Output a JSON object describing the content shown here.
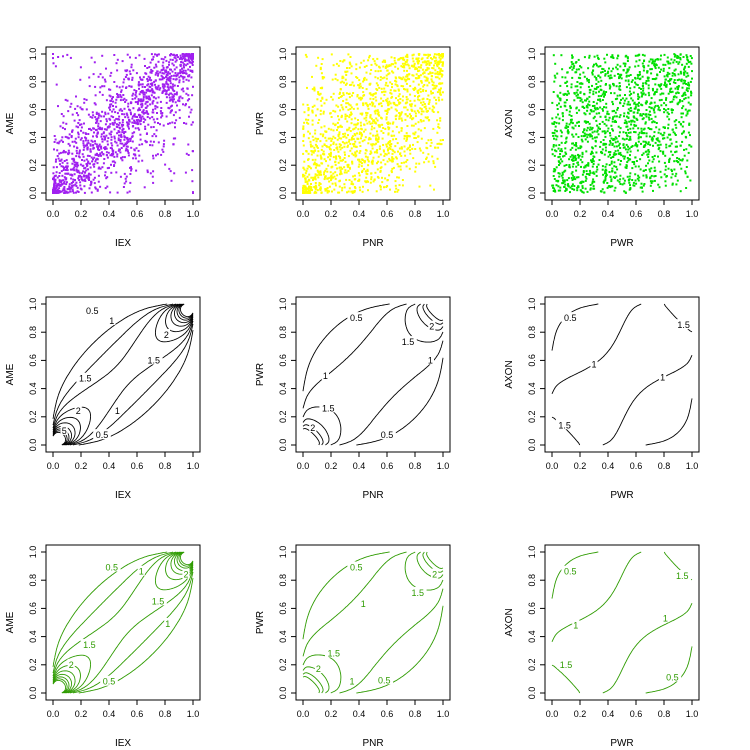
{
  "chart_data": [
    {
      "type": "scatter",
      "row": 0,
      "col": 0,
      "xlabel": "IEX",
      "ylabel": "AME",
      "xlim": [
        0,
        1
      ],
      "ylim": [
        0,
        1
      ],
      "xticks": [
        "0.0",
        "0.2",
        "0.4",
        "0.6",
        "0.8",
        "1.0"
      ],
      "yticks": [
        "0.0",
        "0.2",
        "0.4",
        "0.6",
        "0.8",
        "1.0"
      ],
      "color": "#A020F0",
      "n_points": 1500,
      "dependence": "strong positive, concentrated at (0,0) and (1,1)"
    },
    {
      "type": "scatter",
      "row": 0,
      "col": 1,
      "xlabel": "PNR",
      "ylabel": "PWR",
      "xlim": [
        0,
        1
      ],
      "ylim": [
        0,
        1
      ],
      "xticks": [
        "0.0",
        "0.2",
        "0.4",
        "0.6",
        "0.8",
        "1.0"
      ],
      "yticks": [
        "0.0",
        "0.2",
        "0.4",
        "0.6",
        "0.8",
        "1.0"
      ],
      "color": "#FFFF00",
      "n_points": 1500,
      "dependence": "moderate positive"
    },
    {
      "type": "scatter",
      "row": 0,
      "col": 2,
      "xlabel": "PWR",
      "ylabel": "AXON",
      "xlim": [
        0,
        1
      ],
      "ylim": [
        0,
        1
      ],
      "xticks": [
        "0.0",
        "0.2",
        "0.4",
        "0.6",
        "0.8",
        "1.0"
      ],
      "yticks": [
        "0.0",
        "0.2",
        "0.4",
        "0.6",
        "0.8",
        "1.0"
      ],
      "color": "#00E000",
      "n_points": 1500,
      "dependence": "weak positive"
    },
    {
      "type": "contour",
      "row": 1,
      "col": 0,
      "xlabel": "IEX",
      "ylabel": "AME",
      "xlim": [
        0,
        1
      ],
      "ylim": [
        0,
        1
      ],
      "xticks": [
        "0.0",
        "0.2",
        "0.4",
        "0.6",
        "0.8",
        "1.0"
      ],
      "yticks": [
        "0.0",
        "0.2",
        "0.4",
        "0.6",
        "0.8",
        "1.0"
      ],
      "color": "#000000",
      "contour_labels": [
        {
          "text": "0.5",
          "x": 0.28,
          "y": 0.95
        },
        {
          "text": "1",
          "x": 0.42,
          "y": 0.88
        },
        {
          "text": "2",
          "x": 0.81,
          "y": 0.78
        },
        {
          "text": "1.5",
          "x": 0.72,
          "y": 0.6
        },
        {
          "text": "1.5",
          "x": 0.23,
          "y": 0.47
        },
        {
          "text": "2",
          "x": 0.18,
          "y": 0.24
        },
        {
          "text": "1",
          "x": 0.46,
          "y": 0.24
        },
        {
          "text": "5",
          "x": 0.08,
          "y": 0.1
        },
        {
          "text": "0.5",
          "x": 0.35,
          "y": 0.07
        }
      ]
    },
    {
      "type": "contour",
      "row": 1,
      "col": 1,
      "xlabel": "PNR",
      "ylabel": "PWR",
      "xlim": [
        0,
        1
      ],
      "ylim": [
        0,
        1
      ],
      "xticks": [
        "0.0",
        "0.2",
        "0.4",
        "0.6",
        "0.8",
        "1.0"
      ],
      "yticks": [
        "0.0",
        "0.2",
        "0.4",
        "0.6",
        "0.8",
        "1.0"
      ],
      "color": "#000000",
      "contour_labels": [
        {
          "text": "0.5",
          "x": 0.38,
          "y": 0.9
        },
        {
          "text": "2",
          "x": 0.92,
          "y": 0.84
        },
        {
          "text": "1.5",
          "x": 0.75,
          "y": 0.73
        },
        {
          "text": "1",
          "x": 0.16,
          "y": 0.49
        },
        {
          "text": "1",
          "x": 0.91,
          "y": 0.6
        },
        {
          "text": "1.5",
          "x": 0.18,
          "y": 0.26
        },
        {
          "text": "2",
          "x": 0.07,
          "y": 0.12
        },
        {
          "text": "0.5",
          "x": 0.6,
          "y": 0.07
        }
      ]
    },
    {
      "type": "contour",
      "row": 1,
      "col": 2,
      "xlabel": "PWR",
      "ylabel": "AXON",
      "xlim": [
        0,
        1
      ],
      "ylim": [
        0,
        1
      ],
      "xticks": [
        "0.0",
        "0.2",
        "0.4",
        "0.6",
        "0.8",
        "1.0"
      ],
      "yticks": [
        "0.0",
        "0.2",
        "0.4",
        "0.6",
        "0.8",
        "1.0"
      ],
      "color": "#000000",
      "contour_labels": [
        {
          "text": "0.5",
          "x": 0.13,
          "y": 0.9
        },
        {
          "text": "1.5",
          "x": 0.94,
          "y": 0.85
        },
        {
          "text": "1",
          "x": 0.3,
          "y": 0.57
        },
        {
          "text": "1",
          "x": 0.79,
          "y": 0.48
        },
        {
          "text": "1.5",
          "x": 0.09,
          "y": 0.14
        }
      ]
    },
    {
      "type": "contour",
      "row": 2,
      "col": 0,
      "xlabel": "IEX",
      "ylabel": "AME",
      "xlim": [
        0,
        1
      ],
      "ylim": [
        0,
        1
      ],
      "xticks": [
        "0.0",
        "0.2",
        "0.4",
        "0.6",
        "0.8",
        "1.0"
      ],
      "yticks": [
        "0.0",
        "0.2",
        "0.4",
        "0.6",
        "0.8",
        "1.0"
      ],
      "color": "#2E9B00",
      "contour_labels": [
        {
          "text": "0.5",
          "x": 0.42,
          "y": 0.89
        },
        {
          "text": "1",
          "x": 0.63,
          "y": 0.86
        },
        {
          "text": "2",
          "x": 0.95,
          "y": 0.84
        },
        {
          "text": "1.5",
          "x": 0.75,
          "y": 0.65
        },
        {
          "text": "1",
          "x": 0.82,
          "y": 0.49
        },
        {
          "text": "1.5",
          "x": 0.26,
          "y": 0.34
        },
        {
          "text": "2",
          "x": 0.13,
          "y": 0.2
        },
        {
          "text": "0.5",
          "x": 0.4,
          "y": 0.08
        }
      ]
    },
    {
      "type": "contour",
      "row": 2,
      "col": 1,
      "xlabel": "PNR",
      "ylabel": "PWR",
      "xlim": [
        0,
        1
      ],
      "ylim": [
        0,
        1
      ],
      "xticks": [
        "0.0",
        "0.2",
        "0.4",
        "0.6",
        "0.8",
        "1.0"
      ],
      "yticks": [
        "0.0",
        "0.2",
        "0.4",
        "0.6",
        "0.8",
        "1.0"
      ],
      "color": "#2E9B00",
      "contour_labels": [
        {
          "text": "0.5",
          "x": 0.38,
          "y": 0.89
        },
        {
          "text": "2",
          "x": 0.94,
          "y": 0.84
        },
        {
          "text": "1.5",
          "x": 0.82,
          "y": 0.71
        },
        {
          "text": "1",
          "x": 0.43,
          "y": 0.63
        },
        {
          "text": "1.5",
          "x": 0.22,
          "y": 0.28
        },
        {
          "text": "2",
          "x": 0.11,
          "y": 0.17
        },
        {
          "text": "1",
          "x": 0.35,
          "y": 0.08
        },
        {
          "text": "0.5",
          "x": 0.58,
          "y": 0.09
        }
      ]
    },
    {
      "type": "contour",
      "row": 2,
      "col": 2,
      "xlabel": "PWR",
      "ylabel": "AXON",
      "xlim": [
        0,
        1
      ],
      "ylim": [
        0,
        1
      ],
      "xticks": [
        "0.0",
        "0.2",
        "0.4",
        "0.6",
        "0.8",
        "1.0"
      ],
      "yticks": [
        "0.0",
        "0.2",
        "0.4",
        "0.6",
        "0.8",
        "1.0"
      ],
      "color": "#2E9B00",
      "contour_labels": [
        {
          "text": "0.5",
          "x": 0.13,
          "y": 0.86
        },
        {
          "text": "1.5",
          "x": 0.93,
          "y": 0.83
        },
        {
          "text": "1",
          "x": 0.17,
          "y": 0.48
        },
        {
          "text": "1",
          "x": 0.81,
          "y": 0.53
        },
        {
          "text": "1.5",
          "x": 0.1,
          "y": 0.2
        },
        {
          "text": "0.5",
          "x": 0.86,
          "y": 0.11
        }
      ]
    }
  ]
}
